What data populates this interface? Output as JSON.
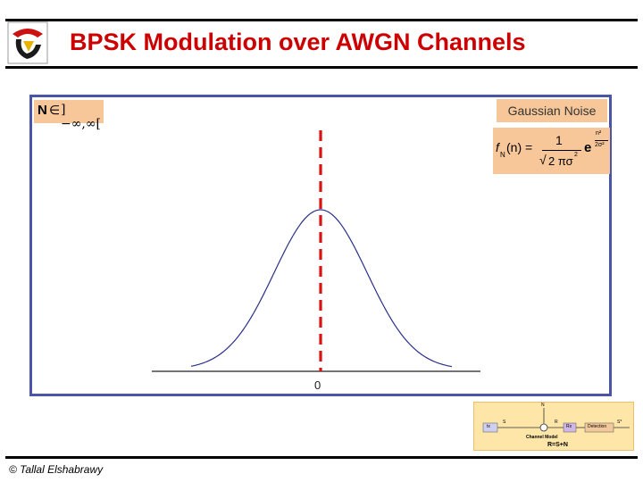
{
  "slide": {
    "title": "BPSK Modulation over AWGN Channels",
    "footer": "© Tallal Elshabrawy"
  },
  "noise_domain": {
    "symbol": "N",
    "relation": "∈",
    "set": "]−∞,∞["
  },
  "noise_label": "Gaussian Noise",
  "pdf_formula": {
    "lhs": "f",
    "sub": "N",
    "arg": "(n) =",
    "numerator": "1",
    "denominator": "2 πσ",
    "den_exp": "2",
    "exp_base": "e",
    "exp_top": "n²",
    "exp_bottom": "2σ²"
  },
  "plot": {
    "origin_label": "0"
  },
  "channel_model": {
    "tx": "tx",
    "rx": "Rx",
    "detection": "Detection",
    "s_label": "S",
    "r_label": "R",
    "n_label": "N",
    "s_hat": "S*",
    "caption": "Channel Model",
    "equation": "R=S+N"
  },
  "colors": {
    "title": "#cc0000",
    "frame": "#4a55a8",
    "callout": "#f7c79a",
    "curve": "#2a2f8a",
    "dashed": "#dd1111"
  }
}
